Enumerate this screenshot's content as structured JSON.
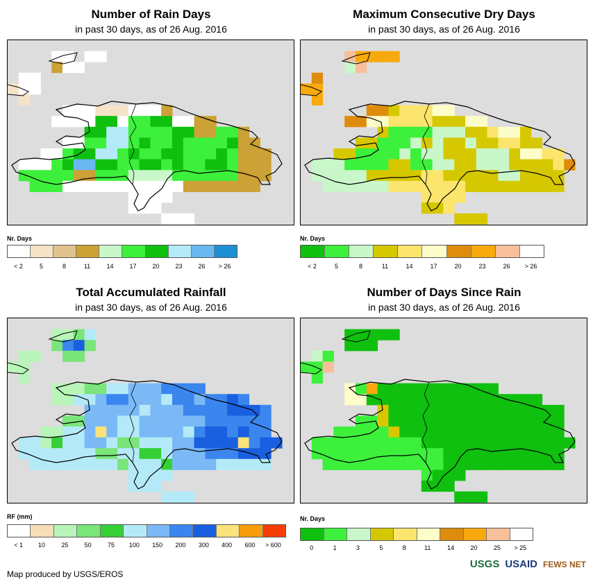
{
  "panels": [
    {
      "id": "rain-days",
      "title": "Number of Rain Days",
      "subtitle": "in past 30 days, as of 26 Aug. 2016",
      "legend_title": "Nr. Days",
      "legend_colors": [
        "#ffffff",
        "#f5e3c8",
        "#e1c38f",
        "#cca135",
        "#c9f7c9",
        "#3cf03c",
        "#0fc00f",
        "#b4eaf7",
        "#6ab8f2",
        "#1d8fd6"
      ],
      "legend_labels": [
        "< 2",
        "5",
        "8",
        "11",
        "14",
        "17",
        "20",
        "23",
        "26",
        "> 26"
      ],
      "grid": [
        "..........................",
        "....AA.AA.................",
        "....DAA...................",
        ".AA.......................",
        "BAA.......................",
        ".B........................",
        ".....AAABBBAAAD...........",
        "....AAAAGGAFFGGAADD.......",
        ".......GGHHFFFFGGDDFFD....",
        ".....AAFFHHFGFFGFFFFGDD...",
        "...AAFGGHHFGFFGGFFFGFDDD..",
        ".AAAFGIIGGFFGGFGFFGGFDDD..",
        ".FFFFFDDFFFEEEEFFFFFFDDD..",
        "..FFFAAAAAAAAAAADDDDDDD...",
        "...........AAAA...........",
        "...........AAA............",
        "..............AAA........."
      ]
    },
    {
      "id": "max-dry-days",
      "title": "Maximum Consecutive Dry Days",
      "subtitle": "in past 30 days, as of 26 Aug. 2016",
      "legend_title": "Nr. Days",
      "legend_colors": [
        "#0fc00f",
        "#3cf03c",
        "#c9f7c9",
        "#d6c800",
        "#fbe56d",
        "#fdfdca",
        "#de8c0c",
        "#f8a90d",
        "#f7c09a",
        "#ffffff"
      ],
      "legend_labels": [
        "< 2",
        "5",
        "8",
        "11",
        "14",
        "17",
        "20",
        "23",
        "26",
        "> 26"
      ],
      "grid": [
        "..........................",
        "....IHHHH.................",
        "....CI....................",
        ".G........................",
        "HH........................",
        ".H........................",
        "......GGDEEEFF............",
        "....GGFFEEEEDDDFF.........",
        ".......DBBBBCCCDDEFFD.....",
        ".....DDBBBCDCDDCDDEEDD....",
        "...DDBBBBCBCCDDDCCCDFFEE..",
        ".CCCBBBBDDBBCCDDCCCDDDDEG.",
        ".CCCCCDDDDDEEDDDDDCCDDDD..",
        "..CCCCCCEEEEEEEDDDDDDDDD..",
        "...........EEEE...........",
        "...........DDE............",
        "..............DDD........."
      ]
    },
    {
      "id": "total-rainfall",
      "title": "Total Accumulated Rainfall",
      "subtitle": "in past 30 days, as of 26 Aug. 2016",
      "legend_title": "RF (mm)",
      "legend_colors": [
        "#ffffff",
        "#f5deb8",
        "#b9f5b9",
        "#7ae57a",
        "#36cf36",
        "#b4eaf7",
        "#7ab9f5",
        "#3b86ee",
        "#1a5fe0",
        "#fbe27a",
        "#f89c0e",
        "#f53e06"
      ],
      "legend_labels": [
        "< 1",
        "10",
        "25",
        "50",
        "75",
        "100",
        "150",
        "200",
        "300",
        "400",
        "600",
        "> 600"
      ],
      "grid": [
        "..........................",
        "....CCDF..................",
        "....DHID..................",
        ".CC..DD...................",
        "CC........................",
        ".C........................",
        "....CCCDDFFGGGHHHH........",
        "....CCFFGHHGGGFHHGHHIH....",
        ".......GGGGGFGGGHHHHIIIH..",
        ".....DDGGGFFGGGGGGHHHHHH..",
        "...CCFFGJGFFGGGGFHIIHIHH..",
        ".FFCEFFGGFDDFFFGGIIIIJHII.",
        ".FFFFFFFDDFFEEFGGGHHHIII..",
        "..FFFFFFFFDFFFEGGGGFFFFF..",
        "...........FFFF...........",
        "...........FFF............",
        "..............FFF........."
      ]
    },
    {
      "id": "days-since-rain",
      "title": "Number of Days Since Rain",
      "subtitle": "in past 30 days, as of 26 Aug. 2016",
      "legend_title": "Nr. Days",
      "legend_colors": [
        "#0fc00f",
        "#3cf03c",
        "#c9f7c9",
        "#d6c800",
        "#fbe56d",
        "#fdfdca",
        "#de8c0c",
        "#f8a90d",
        "#f7c09a",
        "#ffffff"
      ],
      "legend_labels": [
        "0",
        "1",
        "3",
        "5",
        "8",
        "11",
        "14",
        "20",
        "25",
        "> 25"
      ],
      "grid": [
        "..........................",
        "....AAAAA.................",
        "....AAA...................",
        ".CB.......................",
        "BBI.......................",
        ".B........................",
        "....FBHAAAAAAAAAAA........",
        "....FFAAAAAAAAAAAAAAAA....",
        ".......DAAAAAAAAAAAAAAAA..",
        ".....BBDAAAAAAAAAAAAAAAA..",
        "...BBBBBDAAAAAAAAAAAAAAA..",
        ".BBBBBBBBBBAAAAAAAAAAAAAA.",
        ".BBBBBBBBBBBBAAAAAAAAAAA..",
        "..BBBBBBBBBBBAAAAAAAAAAA..",
        "...........BAAA...........",
        "...........AAA............",
        "..............AAA........."
      ]
    }
  ],
  "footer": "Map produced by USGS/EROS",
  "logos": [
    "USGS",
    "USAID",
    "FEWS NET"
  ]
}
